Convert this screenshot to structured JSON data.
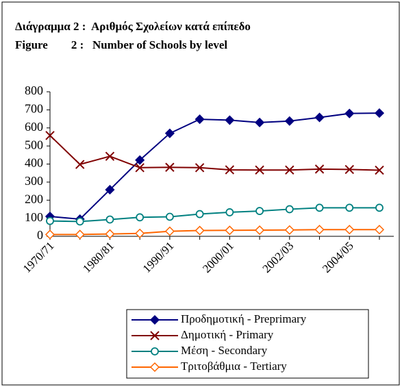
{
  "chart_data": {
    "type": "line",
    "title": "Διάγραμμα 2 :  Αριθμός Σχολείων κατά επίπεδο",
    "subtitle": "Figure        2 :   Number of Schools by level",
    "categories": [
      "1970/71",
      null,
      "1980/81",
      null,
      "1990/91",
      null,
      "2000/01",
      null,
      "2002/03",
      null,
      "2004/05",
      null
    ],
    "series": [
      {
        "name": "Προδημοτική - Preprimary",
        "color": "#000080",
        "marker": "diamond-filled",
        "values": [
          110,
          95,
          258,
          422,
          570,
          648,
          643,
          630,
          638,
          658,
          680,
          682
        ]
      },
      {
        "name": "Δημοτική - Primary",
        "color": "#800000",
        "marker": "x",
        "values": [
          558,
          398,
          443,
          380,
          382,
          380,
          368,
          367,
          367,
          372,
          370,
          366
        ]
      },
      {
        "name": "Μέση - Secondary",
        "color": "#008080",
        "marker": "circle-open",
        "values": [
          85,
          82,
          93,
          105,
          108,
          123,
          133,
          140,
          150,
          158,
          158,
          158
        ]
      },
      {
        "name": "Τριτοβάθμια - Tertiary",
        "color": "#FF6600",
        "marker": "diamond-open",
        "values": [
          10,
          10,
          13,
          16,
          28,
          32,
          33,
          34,
          35,
          37,
          37,
          37
        ]
      }
    ],
    "ylim": [
      0,
      800
    ],
    "yticks": [
      0,
      100,
      200,
      300,
      400,
      500,
      600,
      700,
      800
    ],
    "grid": false,
    "legend": "bottom"
  }
}
